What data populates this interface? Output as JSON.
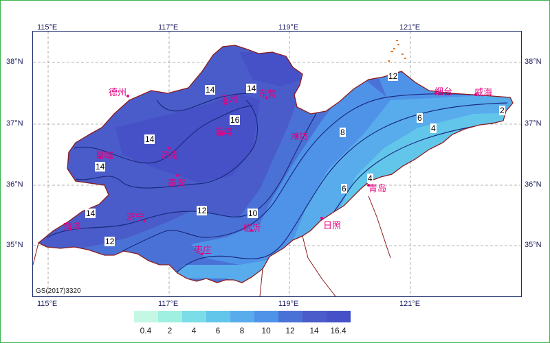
{
  "map": {
    "lon_ticks_top": [
      "115°E",
      "117°E",
      "119°E",
      "121°E"
    ],
    "lon_ticks_bottom": [
      "115°E",
      "117°E",
      "119°E",
      "121°E"
    ],
    "lat_ticks_left": [
      "38°N",
      "37°N",
      "36°N",
      "35°N"
    ],
    "lat_ticks_right": [
      "38°N",
      "37°N",
      "36°N",
      "35°N"
    ],
    "source_note": "GS(2017)3320",
    "cities": [
      {
        "name": "德州"
      },
      {
        "name": "滨州"
      },
      {
        "name": "东营"
      },
      {
        "name": "淄博"
      },
      {
        "name": "潍坊"
      },
      {
        "name": "烟台"
      },
      {
        "name": "威海"
      },
      {
        "name": "聊城"
      },
      {
        "name": "济南"
      },
      {
        "name": "泰安"
      },
      {
        "name": "济宁"
      },
      {
        "name": "菏泽"
      },
      {
        "name": "枣庄"
      },
      {
        "name": "临沂"
      },
      {
        "name": "日照"
      },
      {
        "name": "青岛"
      }
    ],
    "contour_labels": [
      "14",
      "14",
      "14",
      "16",
      "14",
      "14",
      "14",
      "12",
      "12",
      "10",
      "8",
      "6",
      "6",
      "4",
      "4",
      "2",
      "12"
    ],
    "colors": {
      "land_16": "#4651c8",
      "land_14": "#4a5cc9",
      "land_12": "#4a72d6",
      "land_10": "#4f93e8",
      "land_8": "#58acec",
      "land_6": "#62c6ea",
      "land_4": "#7adde8",
      "land_2": "#a8f0e3",
      "contour": "#1b2a80",
      "border": "#8b1a1a",
      "city": "#e6007e"
    }
  },
  "legend": {
    "ticks": [
      "0.4",
      "2",
      "4",
      "6",
      "8",
      "10",
      "12",
      "14",
      "16.4"
    ],
    "colors": [
      "#c4f7e4",
      "#9ff0e0",
      "#7adde8",
      "#62c6ea",
      "#58acec",
      "#4f93e8",
      "#4a72d6",
      "#4a5cc9",
      "#4651c8"
    ]
  }
}
